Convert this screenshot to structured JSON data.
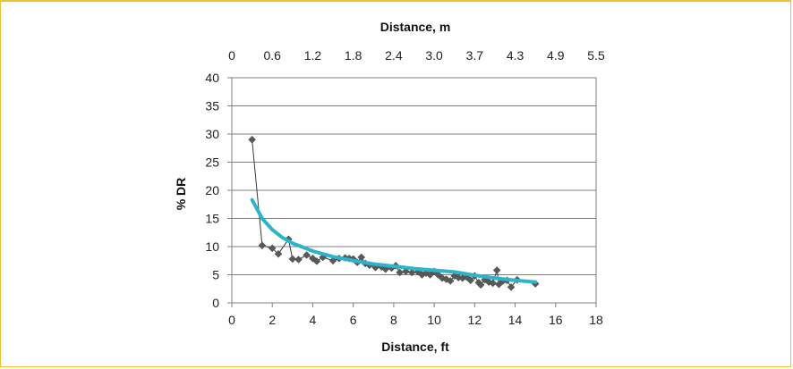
{
  "chart_data": {
    "type": "scatter",
    "xlabel": "Distance, ft",
    "x2label": "Distance, m",
    "ylabel": "% DR",
    "xlim": [
      0,
      18
    ],
    "ylim": [
      0,
      40
    ],
    "x_ticks": [
      "0",
      "2",
      "4",
      "6",
      "8",
      "10",
      "12",
      "14",
      "16",
      "18"
    ],
    "x2_ticks": [
      "0",
      "0.6",
      "1.2",
      "1.8",
      "2.4",
      "3.0",
      "3.7",
      "4.3",
      "4.9",
      "5.5"
    ],
    "y_ticks": [
      "0",
      "5",
      "10",
      "15",
      "20",
      "25",
      "30",
      "35",
      "40"
    ],
    "grid": "horizontal",
    "colors": {
      "points": "#595959",
      "trend": "#2eb3cc",
      "frame": "#f2c230"
    },
    "series": [
      {
        "marker": "diamond",
        "connected": true,
        "points": [
          [
            1.0,
            29.0
          ],
          [
            1.5,
            10.2
          ],
          [
            2.0,
            9.7
          ],
          [
            2.3,
            8.7
          ],
          [
            2.8,
            11.3
          ],
          [
            3.0,
            7.8
          ],
          [
            3.3,
            7.7
          ],
          [
            3.7,
            8.5
          ],
          [
            4.0,
            7.9
          ],
          [
            4.2,
            7.4
          ],
          [
            4.5,
            8.1
          ],
          [
            5.0,
            7.5
          ],
          [
            5.3,
            7.9
          ],
          [
            5.6,
            8.0
          ],
          [
            5.8,
            7.9
          ],
          [
            6.0,
            7.8
          ],
          [
            6.2,
            7.2
          ],
          [
            6.4,
            8.1
          ],
          [
            6.6,
            7.0
          ],
          [
            6.8,
            6.7
          ],
          [
            7.1,
            6.3
          ],
          [
            7.4,
            6.4
          ],
          [
            7.6,
            6.0
          ],
          [
            7.9,
            6.2
          ],
          [
            8.1,
            6.6
          ],
          [
            8.3,
            5.4
          ],
          [
            8.6,
            5.6
          ],
          [
            8.9,
            5.4
          ],
          [
            9.2,
            5.5
          ],
          [
            9.4,
            5.0
          ],
          [
            9.6,
            5.3
          ],
          [
            9.8,
            5.0
          ],
          [
            10.0,
            5.6
          ],
          [
            10.2,
            5.0
          ],
          [
            10.4,
            4.4
          ],
          [
            10.6,
            4.2
          ],
          [
            10.8,
            3.9
          ],
          [
            11.0,
            4.8
          ],
          [
            11.2,
            4.5
          ],
          [
            11.4,
            4.4
          ],
          [
            11.6,
            4.6
          ],
          [
            11.8,
            4.0
          ],
          [
            12.0,
            4.8
          ],
          [
            12.2,
            3.6
          ],
          [
            12.3,
            3.2
          ],
          [
            12.5,
            4.1
          ],
          [
            12.7,
            3.7
          ],
          [
            12.9,
            3.5
          ],
          [
            13.1,
            5.8
          ],
          [
            13.2,
            3.3
          ],
          [
            13.4,
            3.9
          ],
          [
            13.6,
            4.0
          ],
          [
            13.8,
            2.8
          ],
          [
            14.1,
            4.1
          ],
          [
            15.0,
            3.4
          ]
        ]
      },
      {
        "type": "line",
        "trend": true,
        "points": [
          [
            1.0,
            18.3
          ],
          [
            1.5,
            15.0
          ],
          [
            2.0,
            13.0
          ],
          [
            2.5,
            11.6
          ],
          [
            3.0,
            10.6
          ],
          [
            4.0,
            9.2
          ],
          [
            5.0,
            8.2
          ],
          [
            6.0,
            7.5
          ],
          [
            7.0,
            6.9
          ],
          [
            8.0,
            6.5
          ],
          [
            9.0,
            6.1
          ],
          [
            10.0,
            5.8
          ],
          [
            11.0,
            5.5
          ],
          [
            12.0,
            4.9
          ],
          [
            13.0,
            4.4
          ],
          [
            14.0,
            4.0
          ],
          [
            15.0,
            3.7
          ]
        ]
      }
    ]
  }
}
